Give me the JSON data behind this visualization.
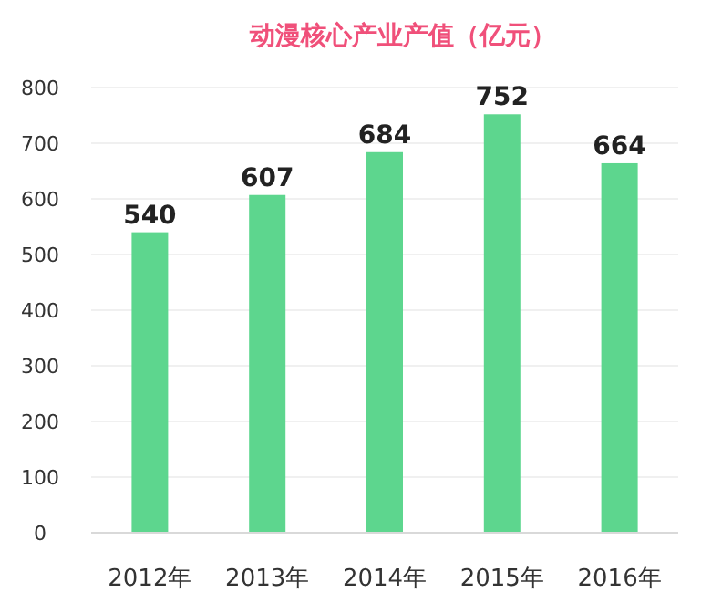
{
  "chart_data": {
    "type": "bar",
    "title": "动漫核心产业产值（亿元）",
    "categories": [
      "2012年",
      "2013年",
      "2014年",
      "2015年",
      "2016年"
    ],
    "values": [
      540,
      607,
      684,
      752,
      664
    ],
    "color": "#5dd68e",
    "ylim": [
      0,
      800
    ],
    "yticks": [
      0,
      100,
      200,
      300,
      400,
      500,
      600,
      700,
      800
    ],
    "grid": "y",
    "data_labels": true
  }
}
